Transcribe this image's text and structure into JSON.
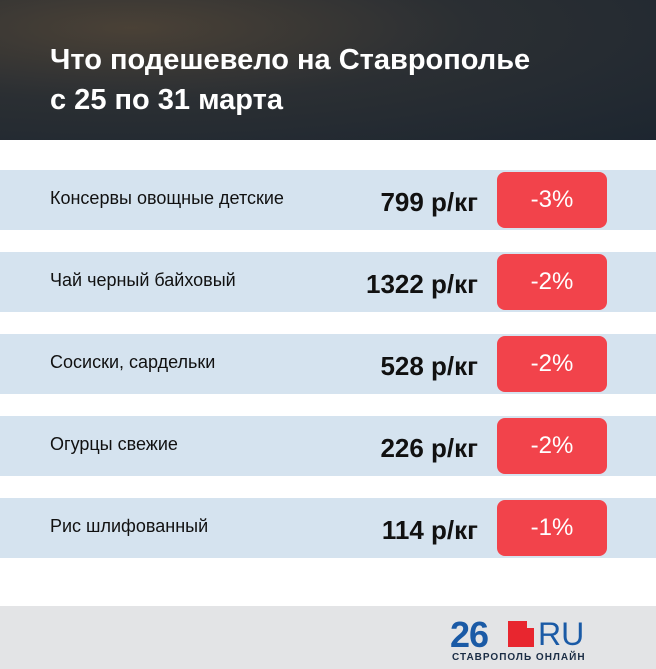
{
  "header": {
    "title_lines": [
      "Что подешевело на Ставрополье",
      "с 25 по 31 марта"
    ]
  },
  "table": {
    "rows": [
      [
        "Консервы овощные детские",
        "799 р/кг",
        "-3%"
      ],
      [
        "Чай черный байховый",
        "1322 р/кг",
        "-2%"
      ],
      [
        "Сосиски, сардельки",
        "528 р/кг",
        "-2%"
      ],
      [
        "Огурцы свежие",
        "226 р/кг",
        "-2%"
      ],
      [
        "Рис шлифованный",
        "114 р/кг",
        "-1%"
      ]
    ]
  },
  "footer": {
    "logo_number": "26",
    "logo_domain": "RU",
    "logo_caption": "СТАВРОПОЛЬ ОНЛАЙН"
  }
}
